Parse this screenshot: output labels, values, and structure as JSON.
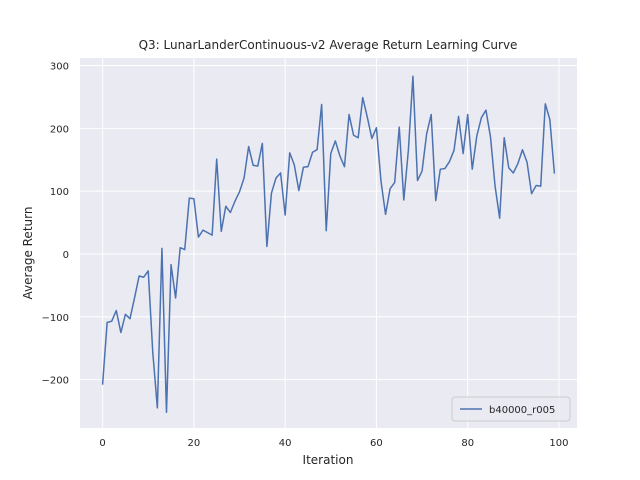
{
  "chart_data": {
    "type": "line",
    "title": "Q3: LunarLanderContinuous-v2 Average Return Learning Curve",
    "xlabel": "Iteration",
    "ylabel": "Average Return",
    "xlim": [
      -4.95,
      103.95
    ],
    "ylim": [
      -277,
      312
    ],
    "xticks": [
      0,
      20,
      40,
      60,
      80,
      100
    ],
    "yticks": [
      -200,
      -100,
      0,
      100,
      200,
      300
    ],
    "xtick_labels": [
      "0",
      "20",
      "40",
      "60",
      "80",
      "100"
    ],
    "ytick_labels": [
      "−200",
      "−100",
      "0",
      "100",
      "200",
      "300"
    ],
    "grid": true,
    "legend_position": "lower-right",
    "series": [
      {
        "name": "b40000_r005",
        "color": "#4c72b0",
        "x": [
          0,
          1,
          2,
          3,
          4,
          5,
          6,
          7,
          8,
          9,
          10,
          11,
          12,
          13,
          14,
          15,
          16,
          17,
          18,
          19,
          20,
          21,
          22,
          23,
          24,
          25,
          26,
          27,
          28,
          29,
          30,
          31,
          32,
          33,
          34,
          35,
          36,
          37,
          38,
          39,
          40,
          41,
          42,
          43,
          44,
          45,
          46,
          47,
          48,
          49,
          50,
          51,
          52,
          53,
          54,
          55,
          56,
          57,
          58,
          59,
          60,
          61,
          62,
          63,
          64,
          65,
          66,
          67,
          68,
          69,
          70,
          71,
          72,
          73,
          74,
          75,
          76,
          77,
          78,
          79,
          80,
          81,
          82,
          83,
          84,
          85,
          86,
          87,
          88,
          89,
          90,
          91,
          92,
          93,
          94,
          95,
          96,
          97,
          98,
          99
        ],
        "y": [
          -208,
          -109,
          -107,
          -90,
          -125,
          -96,
          -103,
          -70,
          -35,
          -37,
          -27,
          -157,
          -245,
          9,
          -252,
          -17,
          -70,
          10,
          7,
          89,
          88,
          27,
          38,
          34,
          30,
          151,
          36,
          76,
          66,
          84,
          99,
          121,
          171,
          141,
          140,
          176,
          12,
          97,
          121,
          129,
          62,
          161,
          142,
          101,
          138,
          139,
          162,
          166,
          238,
          37,
          160,
          180,
          156,
          139,
          222,
          189,
          185,
          249,
          218,
          184,
          201,
          116,
          63,
          104,
          114,
          202,
          86,
          165,
          283,
          117,
          132,
          191,
          222,
          85,
          135,
          136,
          147,
          165,
          219,
          160,
          222,
          135,
          188,
          217,
          229,
          186,
          108,
          57,
          185,
          137,
          129,
          144,
          166,
          146,
          96,
          109,
          108,
          239,
          214,
          128
        ]
      }
    ]
  }
}
